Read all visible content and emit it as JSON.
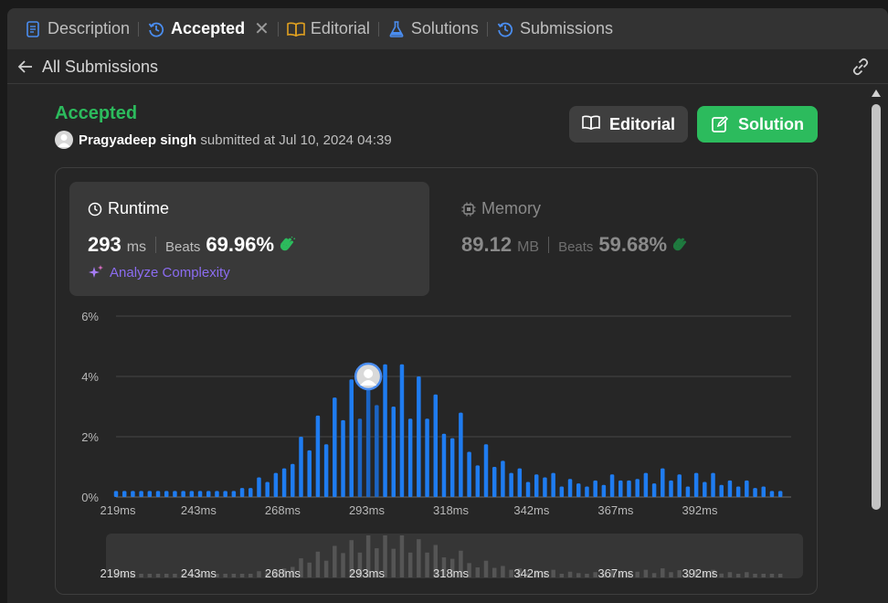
{
  "tabs": [
    {
      "label": "Description",
      "icon": "description-icon",
      "active": false
    },
    {
      "label": "Accepted",
      "icon": "history-icon",
      "active": true
    },
    {
      "label": "Editorial",
      "icon": "book-icon",
      "active": false
    },
    {
      "label": "Solutions",
      "icon": "flask-icon",
      "active": false
    },
    {
      "label": "Submissions",
      "icon": "history-icon",
      "active": false
    }
  ],
  "subheader": {
    "back_label": "All Submissions"
  },
  "submission": {
    "status": "Accepted",
    "user": "Pragyadeep singh",
    "submitted_text": "submitted at Jul 10, 2024 04:39"
  },
  "buttons": {
    "editorial": "Editorial",
    "solution": "Solution"
  },
  "runtime": {
    "title": "Runtime",
    "value": "293",
    "unit": "ms",
    "beats_label": "Beats",
    "beats_value": "69.96%",
    "analyze_label": "Analyze Complexity"
  },
  "memory": {
    "title": "Memory",
    "value": "89.12",
    "unit": "MB",
    "beats_label": "Beats",
    "beats_value": "59.68%"
  },
  "colors": {
    "accepted_green": "#2cbb5d",
    "bar_blue": "#1f7cf0",
    "bar_blue_highlight": "#1b64c4",
    "analyze_purple": "#8b6cf0"
  },
  "chart_data": {
    "type": "bar",
    "ylim": [
      0,
      6
    ],
    "y_ticks": [
      "0%",
      "2%",
      "4%",
      "6%"
    ],
    "x_ticks": [
      "219ms",
      "243ms",
      "268ms",
      "293ms",
      "318ms",
      "342ms",
      "367ms",
      "392ms"
    ],
    "x_tick_values": [
      219,
      243,
      268,
      293,
      318,
      342,
      367,
      392
    ],
    "x_range": [
      219,
      417
    ],
    "highlight_range": [
      290,
      297
    ],
    "marker_x": 294,
    "marker_y": 4.0,
    "series": [
      {
        "x": [
          219,
          221.5,
          224,
          226.5,
          229,
          231.5,
          234,
          236.5,
          239,
          241.5,
          244,
          246.5,
          249,
          251.5,
          254,
          256.5,
          259,
          261.5,
          264,
          266.5,
          269,
          271.5,
          274,
          276.5,
          279,
          281.5,
          284,
          286.5,
          289,
          291.5,
          294,
          296.5,
          299,
          301.5,
          304,
          306.5,
          309,
          311.5,
          314,
          316.5,
          319,
          321.5,
          324,
          326.5,
          329,
          331.5,
          334,
          336.5,
          339,
          341.5,
          344,
          346.5,
          349,
          351.5,
          354,
          356.5,
          359,
          361.5,
          364,
          366.5,
          369,
          371.5,
          374,
          376.5,
          379,
          381.5,
          384,
          386.5,
          389,
          391.5,
          394,
          396.5,
          399,
          401.5,
          404,
          406.5,
          409,
          411.5,
          414,
          416.5
        ],
        "values": [
          0.2,
          0.2,
          0.2,
          0.2,
          0.2,
          0.2,
          0.2,
          0.2,
          0.2,
          0.2,
          0.2,
          0.2,
          0.2,
          0.2,
          0.2,
          0.3,
          0.3,
          0.65,
          0.5,
          0.8,
          0.95,
          1.1,
          2.0,
          1.55,
          2.7,
          1.75,
          3.3,
          2.55,
          3.9,
          2.6,
          4.4,
          3.05,
          4.4,
          3.0,
          4.4,
          2.6,
          4.0,
          2.6,
          3.4,
          2.1,
          1.95,
          2.8,
          1.5,
          1.05,
          1.75,
          1.0,
          1.2,
          0.8,
          0.95,
          0.5,
          0.75,
          0.65,
          0.8,
          0.35,
          0.6,
          0.45,
          0.35,
          0.55,
          0.4,
          0.75,
          0.55,
          0.55,
          0.6,
          0.8,
          0.45,
          0.95,
          0.55,
          0.75,
          0.35,
          0.8,
          0.5,
          0.8,
          0.4,
          0.55,
          0.35,
          0.55,
          0.3,
          0.35,
          0.2,
          0.2
        ]
      }
    ]
  }
}
